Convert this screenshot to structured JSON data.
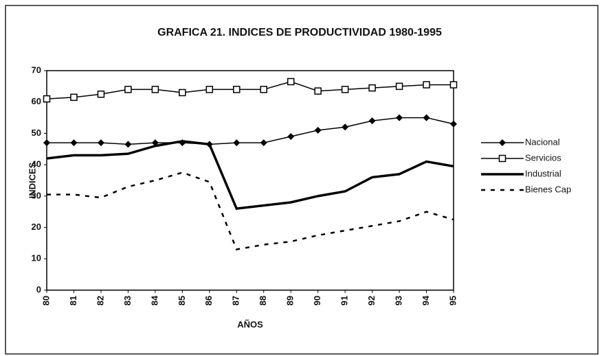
{
  "chart_data": {
    "type": "line",
    "title": "GRAFICA 21. INDICES DE PRODUCTIVIDAD 1980-1995",
    "x_label": "AÑOS",
    "y_label": "INDICES",
    "categories": [
      "80",
      "81",
      "82",
      "83",
      "84",
      "85",
      "86",
      "87",
      "88",
      "89",
      "90",
      "91",
      "92",
      "93",
      "94",
      "95"
    ],
    "ylim": [
      0,
      70
    ],
    "yticks": [
      0,
      10,
      20,
      30,
      40,
      50,
      60,
      70
    ],
    "legend": "right",
    "series": [
      {
        "name": "Nacional",
        "color": "#000000",
        "marker": "diamond",
        "line_width": 1.5,
        "dash": "none",
        "values": [
          47,
          47,
          47,
          46.5,
          47,
          47,
          46.5,
          47,
          47,
          49,
          51,
          52,
          54,
          55,
          55,
          53
        ]
      },
      {
        "name": "Servicios",
        "color": "#000000",
        "marker": "square",
        "line_width": 1.5,
        "dash": "none",
        "values": [
          61,
          61.5,
          62.5,
          64,
          64,
          63,
          64,
          64,
          64,
          66.5,
          63.5,
          64,
          64.5,
          65,
          65.5,
          65.5
        ]
      },
      {
        "name": "Industrial",
        "color": "#000000",
        "marker": "none",
        "line_width": 3.5,
        "dash": "none",
        "values": [
          42,
          43,
          43,
          43.5,
          46,
          47.5,
          46.5,
          26,
          27,
          28,
          30,
          31.5,
          36,
          37,
          41,
          39.5
        ]
      },
      {
        "name": "Bienes Cap",
        "color": "#000000",
        "marker": "none",
        "line_width": 2.5,
        "dash": "6 8",
        "values": [
          30.5,
          30.5,
          29.5,
          33,
          35,
          37.5,
          34.5,
          13,
          14.5,
          15.5,
          17.5,
          19,
          20.5,
          22,
          25,
          22.5
        ]
      }
    ]
  }
}
